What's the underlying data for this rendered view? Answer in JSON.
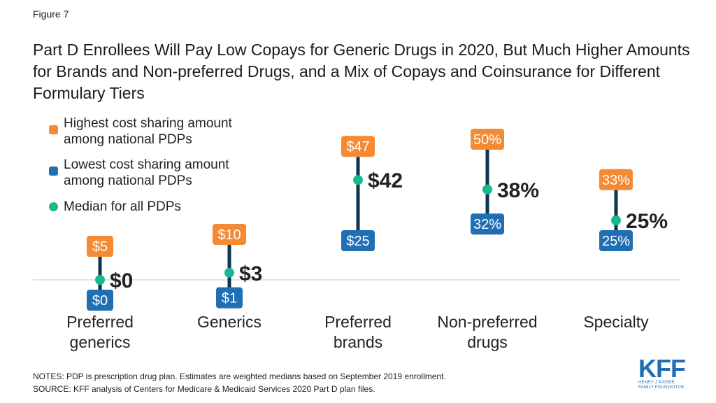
{
  "figure_label": "Figure 7",
  "title": "Part D Enrollees Will Pay Low Copays for Generic Drugs in 2020, But Much Higher Amounts for Brands and Non-preferred Drugs, and a Mix of Copays and Coinsurance for Different Formulary Tiers",
  "legend": {
    "highest": "Highest cost sharing amount among national PDPs",
    "lowest": "Lowest cost sharing amount among national PDPs",
    "median": "Median for all PDPs"
  },
  "colors": {
    "highest": "#f58a34",
    "lowest": "#1f6fb4",
    "median": "#1ab98c",
    "line": "#0f3550"
  },
  "chart_data": {
    "type": "dot-range",
    "categories": [
      {
        "label": [
          "Preferred",
          "generics"
        ],
        "high": 5,
        "low": 0,
        "median": 0,
        "high_label": "$5",
        "low_label": "$0",
        "median_label": "$0"
      },
      {
        "label": [
          "Generics"
        ],
        "high": 10,
        "low": 1,
        "median": 3,
        "high_label": "$10",
        "low_label": "$1",
        "median_label": "$3"
      },
      {
        "label": [
          "Preferred",
          "brands"
        ],
        "high": 47,
        "low": 25,
        "median": 42,
        "high_label": "$47",
        "low_label": "$25",
        "median_label": "$42"
      },
      {
        "label": [
          "Non-preferred",
          "drugs"
        ],
        "high": 50,
        "low": 32,
        "median": 38,
        "high_label": "50%",
        "low_label": "32%",
        "median_label": "38%"
      },
      {
        "label": [
          "Specialty"
        ],
        "high": 33,
        "low": 25,
        "median": 25,
        "high_label": "33%",
        "low_label": "25%",
        "median_label": "25%"
      }
    ],
    "legend_position": "top-left",
    "grid": false
  },
  "notes": "NOTES: PDP is prescription drug plan. Estimates are weighted medians based on September 2019 enrollment.",
  "source": "SOURCE: KFF analysis of Centers for Medicare & Medicaid Services 2020 Part D plan files.",
  "logo": {
    "main": "KFF",
    "sub_line1": "HENRY J KAISER",
    "sub_line2": "FAMILY FOUNDATION"
  }
}
